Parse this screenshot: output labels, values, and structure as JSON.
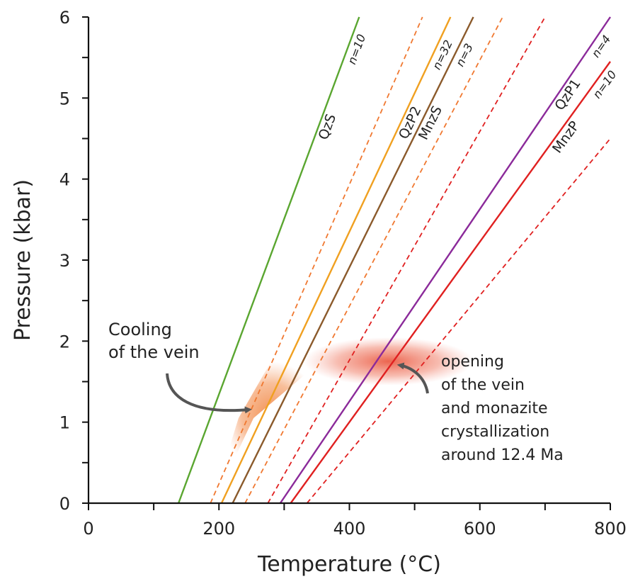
{
  "chart_data": {
    "type": "line",
    "xlabel": "Temperature (°C)",
    "ylabel": "Pressure (kbar)",
    "xlim": [
      0,
      800
    ],
    "ylim": [
      0,
      6
    ],
    "xticks": [
      "0",
      "200",
      "400",
      "600",
      "800"
    ],
    "yticks": [
      "0",
      "1",
      "2",
      "3",
      "4",
      "5",
      "6"
    ],
    "grid": false,
    "series": [
      {
        "name": "QzS",
        "n_label": "n=10",
        "color": "#5aa630",
        "style": "solid",
        "x": [
          138,
          415
        ],
        "y": [
          0,
          6
        ]
      },
      {
        "name": "QzP2",
        "n_label": "n=32",
        "color": "#f0a020",
        "style": "solid",
        "x": [
          204,
          555
        ],
        "y": [
          0,
          6
        ]
      },
      {
        "name": "",
        "color": "#f07830",
        "style": "dashed",
        "x": [
          187,
          512
        ],
        "y": [
          0,
          6
        ]
      },
      {
        "name": "",
        "color": "#f07830",
        "style": "dashed",
        "x": [
          240,
          635
        ],
        "y": [
          0,
          6
        ]
      },
      {
        "name": "MnzS",
        "n_label": "n=3",
        "color": "#8b5a2b",
        "style": "solid",
        "x": [
          221,
          590
        ],
        "y": [
          0,
          6
        ]
      },
      {
        "name": "",
        "color": "#e02020",
        "style": "dashed",
        "x": [
          275,
          700
        ],
        "y": [
          0,
          6
        ]
      },
      {
        "name": "QzP1",
        "n_label": "n=4",
        "color": "#8b2a9a",
        "style": "solid",
        "x": [
          294,
          800
        ],
        "y": [
          0,
          6
        ]
      },
      {
        "name": "MnzP",
        "n_label": "n=10",
        "color": "#e02020",
        "style": "solid",
        "x": [
          310,
          800
        ],
        "y": [
          0,
          5.45
        ]
      },
      {
        "name": "",
        "color": "#e02020",
        "style": "dashed",
        "x": [
          335,
          800
        ],
        "y": [
          0,
          4.5
        ]
      }
    ],
    "regions": [
      {
        "id": "cooling",
        "color": "#f07a30",
        "x": [
          270,
          280,
          230,
          205,
          215,
          253,
          356,
          346
        ],
        "y": [
          1.75,
          1.75,
          1.05,
          0.4,
          0.4,
          1.05,
          1.75,
          1.75
        ]
      },
      {
        "id": "opening",
        "color": "#e84a30",
        "center": [
          460,
          1.75
        ]
      }
    ],
    "annotations": [
      {
        "lines": [
          "Cooling",
          "of the vein"
        ],
        "arrow_to": [
          255,
          1.05
        ]
      },
      {
        "lines": [
          "opening",
          "of the vein",
          "and monazite",
          "crystallization",
          "around 12.4 Ma"
        ],
        "arrow_to": [
          462,
          1.72
        ]
      }
    ]
  }
}
